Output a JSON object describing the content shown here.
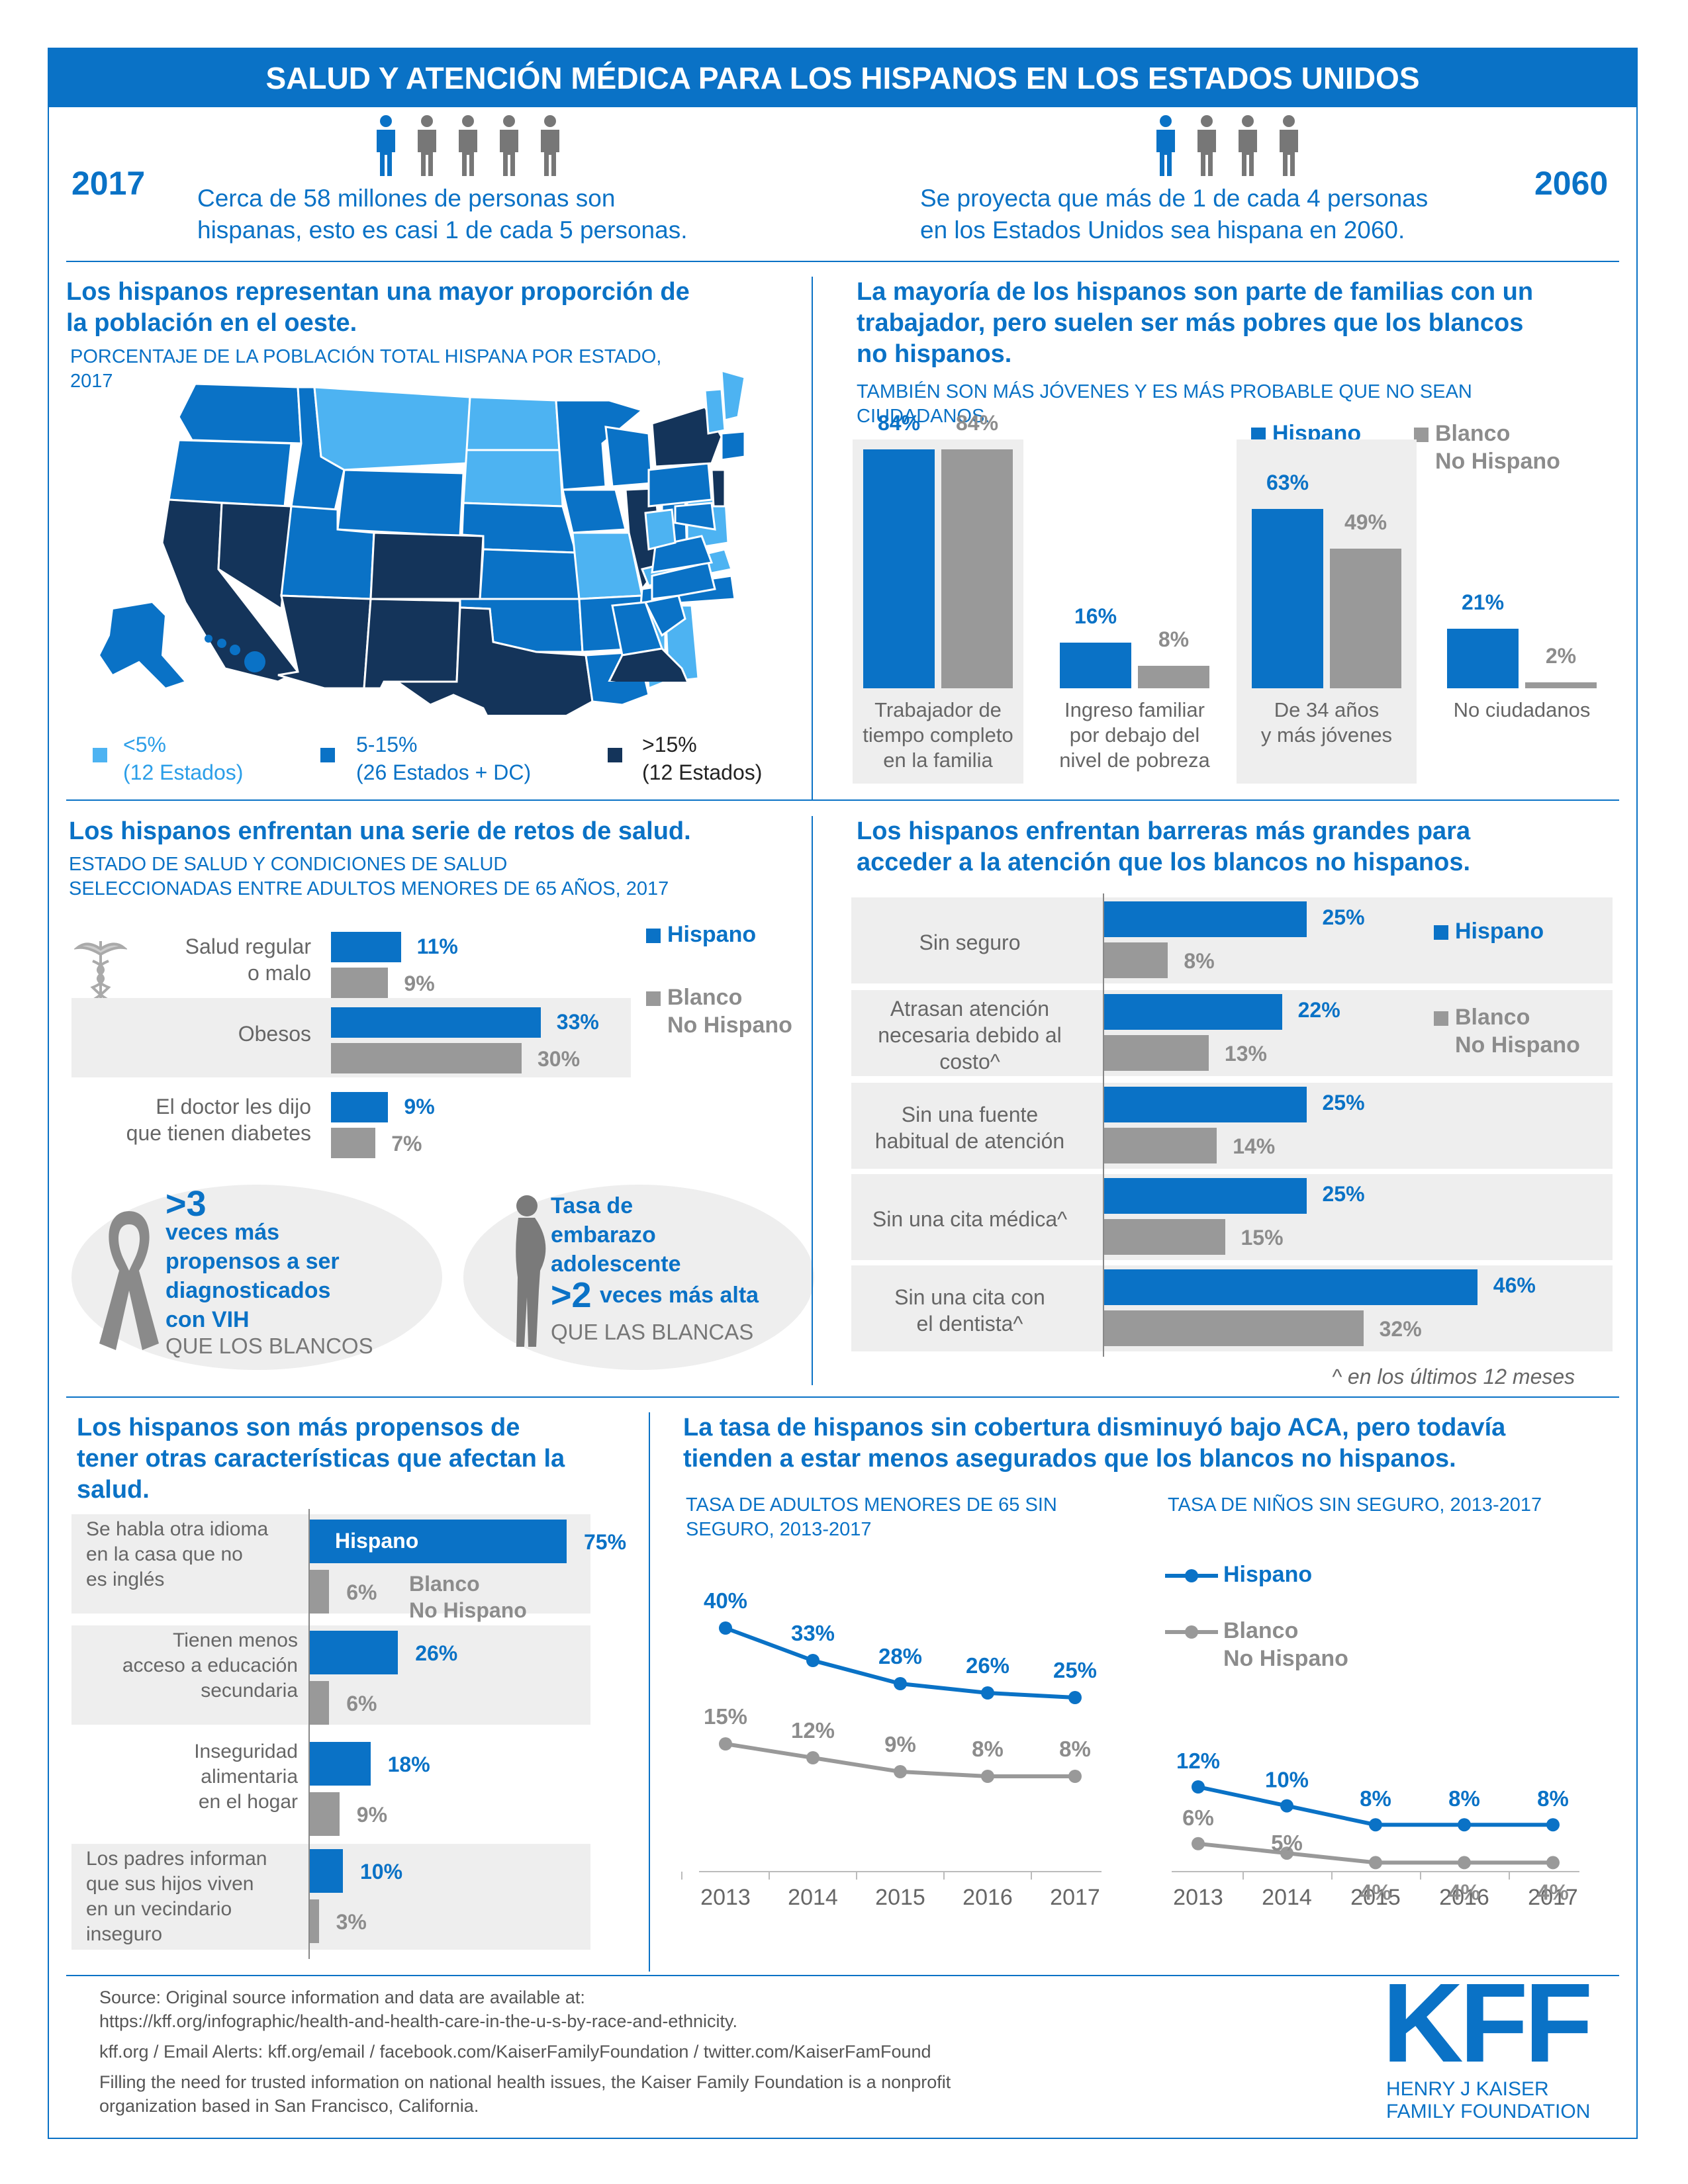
{
  "title": "SALUD Y ATENCIÓN MÉDICA PARA LOS HISPANOS EN LOS ESTADOS UNIDOS",
  "top": {
    "year_left": "2017",
    "text_left_1": "Cerca de 58 millones de personas son",
    "text_left_2": "hispanas, esto es casi 1 de cada 5 personas.",
    "year_right": "2060",
    "text_right_1": "Se proyecta que más de 1 de cada 4 personas",
    "text_right_2": "en los Estados Unidos sea hispana en 2060."
  },
  "map_section": {
    "heading_1": "Los hispanos representan una mayor proporción de",
    "heading_2": "la población en el oeste.",
    "sub_1": "PORCENTAJE DE LA POBLACIÓN TOTAL HISPANA POR ESTADO,",
    "sub_2": "2017",
    "legend": [
      {
        "label": "<5%",
        "count": "(12 Estados)",
        "color": "#4db3f2"
      },
      {
        "label": "5-15%",
        "count": "(26 Estados + DC)",
        "color": "#0a72c6"
      },
      {
        "label": ">15%",
        "count": "(12 Estados)",
        "color": "#14345a"
      }
    ]
  },
  "family_section": {
    "heading_1": "La mayoría de los hispanos son parte de familias con un",
    "heading_2": "trabajador, pero suelen ser más pobres que los blancos",
    "heading_3": "no hispanos.",
    "sub_1": "TAMBIÉN SON MÁS JÓVENES Y ES MÁS PROBABLE QUE NO SEAN",
    "sub_2": "CIUDADANOS.",
    "legend_hispanic": "Hispano",
    "legend_white_1": "Blanco",
    "legend_white_2": "No Hispano"
  },
  "health_section": {
    "heading": "Los hispanos enfrentan una serie de retos de salud.",
    "sub_1": "ESTADO DE SALUD Y CONDICIONES DE SALUD",
    "sub_2": "SELECCIONADAS ENTRE ADULTOS MENORES DE 65 AÑOS, 2017",
    "legend_hispanic": "Hispano",
    "legend_white_1": "Blanco",
    "legend_white_2": "No Hispano",
    "hiv_big": ">3",
    "hiv_1": "veces más",
    "hiv_2": "propensos a ser",
    "hiv_3": "diagnosticados",
    "hiv_4": "con VIH",
    "hiv_5": "QUE LOS BLANCOS",
    "teen_1": "Tasa de",
    "teen_2": "embarazo",
    "teen_3": "adolescente",
    "teen_big": ">2",
    "teen_4": "veces más alta",
    "teen_5": "QUE LAS BLANCAS"
  },
  "access_section": {
    "heading_1": "Los hispanos enfrentan barreras más grandes para",
    "heading_2": "acceder a la atención que los blancos no hispanos.",
    "legend_hispanic": "Hispano",
    "legend_white_1": "Blanco",
    "legend_white_2": "No Hispano",
    "footnote": "^ en los últimos 12 meses"
  },
  "other_section": {
    "heading_1": "Los hispanos son más propensos de",
    "heading_2": "tener otras características que afectan la",
    "heading_3": "salud.",
    "in_bar_label": "Hispano",
    "white_label_1": "Blanco",
    "white_label_2": "No Hispano"
  },
  "aca_section": {
    "heading_1": "La tasa de hispanos sin cobertura disminuyó bajo ACA, pero todavía",
    "heading_2": "tienden a estar menos asegurados que los blancos no hispanos.",
    "adults_sub_1": "TASA DE ADULTOS MENORES DE 65 SIN",
    "adults_sub_2": "SEGURO, 2013-2017",
    "kids_sub": "TASA DE NIÑOS SIN SEGURO, 2013-2017",
    "legend_hispanic": "Hispano",
    "legend_white_1": "Blanco",
    "legend_white_2": "No Hispano"
  },
  "footer": {
    "source_1": "Source: Original source information and data are available at:",
    "source_2": "https://kff.org/infographic/health-and-health-care-in-the-u-s-by-race-and-ethnicity.",
    "links": "kff.org / Email Alerts: kff.org/email / facebook.com/KaiserFamilyFoundation / twitter.com/KaiserFamFound",
    "about_1": "Filling the need for trusted information on national health issues, the Kaiser Family Foundation is a nonprofit",
    "about_2": "organization based in San Francisco, California.",
    "logo": "KFF",
    "logo_sub_1": "HENRY J KAISER",
    "logo_sub_2": "FAMILY FOUNDATION"
  },
  "chart_data": [
    {
      "type": "bar",
      "categories": [
        "Trabajador de tiempo completo en la familia",
        "Ingreso familiar por debajo del nivel de pobreza",
        "De 34 años y más jóvenes",
        "No ciudadanos"
      ],
      "series": [
        {
          "name": "Hispano",
          "values": [
            84,
            16,
            63,
            21
          ],
          "labels": [
            "84%",
            "16%",
            "63%",
            "21%"
          ]
        },
        {
          "name": "Blanco No Hispano",
          "values": [
            84,
            8,
            49,
            2
          ],
          "labels": [
            "84%",
            "8%",
            "49%",
            "2%"
          ]
        }
      ]
    },
    {
      "type": "bar",
      "orientation": "horizontal",
      "categories": [
        "Salud regular o malo",
        "Obesos",
        "El doctor les dijo que tienen diabetes"
      ],
      "series": [
        {
          "name": "Hispano",
          "values": [
            11,
            33,
            9
          ],
          "labels": [
            "11%",
            "33%",
            "9%"
          ]
        },
        {
          "name": "Blanco No Hispano",
          "values": [
            9,
            30,
            7
          ],
          "labels": [
            "9%",
            "30%",
            "7%"
          ]
        }
      ]
    },
    {
      "type": "bar",
      "orientation": "horizontal",
      "categories": [
        "Sin seguro",
        "Atrasan atención necesaria debido al costo^",
        "Sin una fuente habitual de atención",
        "Sin una cita médica^",
        "Sin una cita con el dentista^"
      ],
      "series": [
        {
          "name": "Hispano",
          "values": [
            25,
            22,
            25,
            25,
            46
          ],
          "labels": [
            "25%",
            "22%",
            "25%",
            "25%",
            "46%"
          ]
        },
        {
          "name": "Blanco No Hispano",
          "values": [
            8,
            13,
            14,
            15,
            32
          ],
          "labels": [
            "8%",
            "13%",
            "14%",
            "15%",
            "32%"
          ]
        }
      ]
    },
    {
      "type": "bar",
      "orientation": "horizontal",
      "categories": [
        "Se habla otra idioma en la casa que no es inglés",
        "Tienen menos acceso a educación secundaria",
        "Inseguridad alimentaria en el hogar",
        "Los padres informan que sus hijos viven en un vecindario inseguro"
      ],
      "series": [
        {
          "name": "Hispano",
          "values": [
            75,
            26,
            18,
            10
          ],
          "labels": [
            "75%",
            "26%",
            "18%",
            "10%"
          ]
        },
        {
          "name": "Blanco No Hispano",
          "values": [
            6,
            6,
            9,
            3
          ],
          "labels": [
            "6%",
            "6%",
            "9%",
            "3%"
          ]
        }
      ]
    },
    {
      "type": "line",
      "x": [
        "2013",
        "2014",
        "2015",
        "2016",
        "2017"
      ],
      "series": [
        {
          "name": "Hispano",
          "values": [
            40,
            33,
            28,
            26,
            25
          ],
          "labels": [
            "40%",
            "33%",
            "28%",
            "26%",
            "25%"
          ]
        },
        {
          "name": "Blanco No Hispano",
          "values": [
            15,
            12,
            9,
            8,
            8
          ],
          "labels": [
            "15%",
            "12%",
            "9%",
            "8%",
            "8%"
          ]
        }
      ]
    },
    {
      "type": "line",
      "x": [
        "2013",
        "2014",
        "2015",
        "2016",
        "2017"
      ],
      "series": [
        {
          "name": "Hispano",
          "values": [
            12,
            10,
            8,
            8,
            8
          ],
          "labels": [
            "12%",
            "10%",
            "8%",
            "8%",
            "8%"
          ]
        },
        {
          "name": "Blanco No Hispano",
          "values": [
            6,
            5,
            4,
            4,
            4
          ],
          "labels": [
            "6%",
            "5%",
            "4%",
            "4%",
            "4%"
          ]
        }
      ]
    }
  ]
}
